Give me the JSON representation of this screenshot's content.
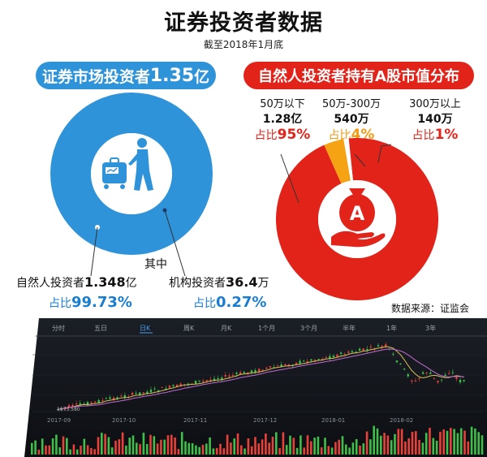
{
  "header": {
    "title": "证券投资者数据",
    "subtitle": "截至2018年1月底"
  },
  "left": {
    "pill_prefix": "证券市场投资者",
    "pill_value": "1.35",
    "pill_unit": "亿",
    "middle_label": "其中",
    "natural": {
      "label": "自然人投资者",
      "value": "1.348",
      "unit": "亿",
      "share_prefix": "占比",
      "share": "99.73%"
    },
    "institution": {
      "label": "机构投资者",
      "value": "36.4",
      "unit": "万",
      "share_prefix": "占比",
      "share": "0.27%"
    },
    "colors": {
      "main": "#2e93d9"
    }
  },
  "right": {
    "pill_text": "自然人投资者持有A股市值分布",
    "segments": [
      {
        "range": "50万以下",
        "count": "1.28亿",
        "share_prefix": "占比",
        "share": "95%",
        "fraction": 0.95,
        "color": "#e2231a"
      },
      {
        "range": "50万-300万",
        "count": "540万",
        "share_prefix": "占比",
        "share": "4%",
        "fraction": 0.04,
        "color": "#f5a313"
      },
      {
        "range": "300万以上",
        "count": "140万",
        "share_prefix": "占比",
        "share": "1%",
        "fraction": 0.01,
        "color": "#ffffff"
      }
    ],
    "icon_letter": "A"
  },
  "source": "数据来源：证监会",
  "stock": {
    "tabs": [
      "分时",
      "五日",
      "日K",
      "周K",
      "月K",
      "1个月",
      "3个月",
      "半年",
      "1年",
      "3年"
    ],
    "active_tab": "日K",
    "x_labels": [
      "2017-09",
      "2017-10",
      "2017-11",
      "2017-12",
      "2018-01",
      "2018-02"
    ],
    "low_marker": "1673.580"
  }
}
